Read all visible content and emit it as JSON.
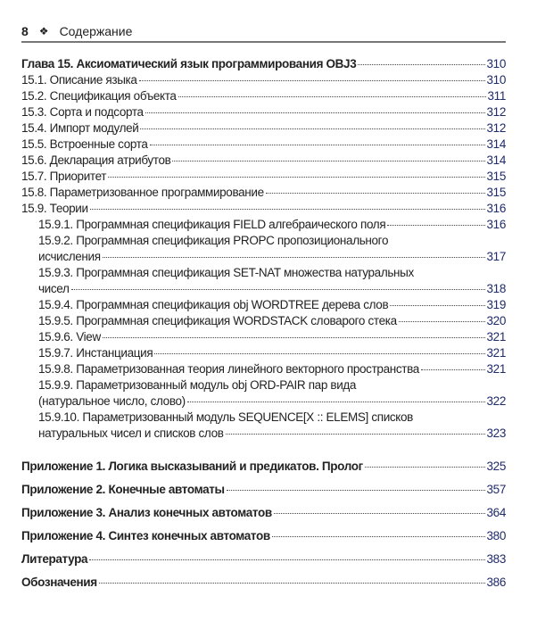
{
  "header": {
    "page_number": "8",
    "ornament": "❖",
    "title": "Содержание"
  },
  "chapter": {
    "title": "Глава 15. Аксиоматический язык программирования OBJ3",
    "page": "310"
  },
  "sections": [
    {
      "title": "15.1. Описание языка",
      "page": "310"
    },
    {
      "title": "15.2. Спецификация объекта",
      "page": "311"
    },
    {
      "title": "15.3. Сорта и подсорта",
      "page": "312"
    },
    {
      "title": "15.4. Импорт модулей",
      "page": "312"
    },
    {
      "title": "15.5. Встроенные сорта",
      "page": "314"
    },
    {
      "title": "15.6. Декларация атрибутов",
      "page": "314"
    },
    {
      "title": "15.7. Приоритет",
      "page": "315"
    },
    {
      "title": "15.8. Параметризованное программирование",
      "page": "315"
    },
    {
      "title": "15.9. Теории",
      "page": "316"
    }
  ],
  "subsections": [
    {
      "line1": "15.9.1. Программная спецификация FIELD алгебраического поля",
      "line2": "",
      "page": "316"
    },
    {
      "line1": "15.9.2. Программная спецификация PROPC пропозиционального",
      "line2": "исчисления",
      "page": "317"
    },
    {
      "line1": "15.9.3. Программная спецификация SET-NAT множества натуральных",
      "line2": "чисел",
      "page": "318"
    },
    {
      "line1": "15.9.4. Программная спецификация obj WORDTREE дерева слов",
      "line2": "",
      "page": "319"
    },
    {
      "line1": "15.9.5. Программная спецификация WORDSTACK словарого стека",
      "line2": "",
      "page": "320"
    },
    {
      "line1": "15.9.6. View",
      "line2": "",
      "page": "321"
    },
    {
      "line1": "15.9.7. Инстанциация",
      "line2": "",
      "page": "321"
    },
    {
      "line1": "15.9.8. Параметризованная теория линейного векторного пространства",
      "line2": "",
      "page": "321"
    },
    {
      "line1": "15.9.9. Параметризованный модуль obj ORD-PAIR пар вида",
      "line2": "(натуральное число, слово)",
      "page": "322"
    },
    {
      "line1": "15.9.10. Параметризованный модуль SEQUENCE[X :: ELEMS] списков",
      "line2": "натуральных чисел и списков слов",
      "page": "323"
    }
  ],
  "appendices": [
    {
      "title": "Приложение 1. Логика высказываний и предикатов. Пролог",
      "page": "325"
    },
    {
      "title": "Приложение 2. Конечные автоматы",
      "page": "357"
    },
    {
      "title": "Приложение 3. Анализ конечных автоматов",
      "page": "364"
    },
    {
      "title": "Приложение 4. Синтез конечных автоматов",
      "page": "380"
    },
    {
      "title": "Литература",
      "page": "383"
    },
    {
      "title": "Обозначения",
      "page": "386"
    }
  ]
}
